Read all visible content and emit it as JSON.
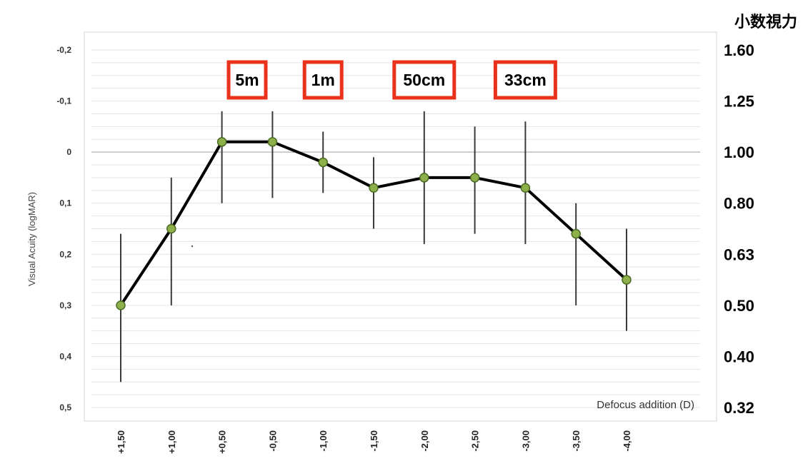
{
  "chart_data": {
    "type": "line",
    "title": "",
    "xlabel": "Defocus addition (D)",
    "ylabel": "Visual Acuity (logMAR)",
    "right_axis_title": "小数視力",
    "categories": [
      "+1,50",
      "+1,00",
      "+0,50",
      "-0,50",
      "-1,00",
      "-1,50",
      "-2,00",
      "-2,50",
      "-3,00",
      "-3,50",
      "-4,00"
    ],
    "values": [
      0.3,
      0.15,
      -0.02,
      -0.02,
      0.02,
      0.07,
      0.05,
      0.05,
      0.07,
      0.16,
      0.25
    ],
    "error_low": [
      0.16,
      0.05,
      -0.08,
      -0.08,
      -0.04,
      0.01,
      -0.08,
      -0.05,
      -0.06,
      0.1,
      0.15
    ],
    "error_high": [
      0.45,
      0.3,
      0.1,
      0.09,
      0.08,
      0.15,
      0.18,
      0.16,
      0.18,
      0.3,
      0.35
    ],
    "ylim": [
      -0.2,
      0.5
    ],
    "y_inverted": true,
    "y_ticks": [
      -0.2,
      -0.1,
      0,
      0.1,
      0.2,
      0.3,
      0.4,
      0.5
    ],
    "y_tick_labels": [
      "-0,2",
      "-0,1",
      "0",
      "0,1",
      "0,2",
      "0,3",
      "0,4",
      "0,5"
    ],
    "right_tick_labels": [
      "1.60",
      "1.25",
      "1.00",
      "0.80",
      "0.63",
      "0.50",
      "0.40",
      "0.32"
    ],
    "grid": true,
    "distance_markers": [
      {
        "label": "5m",
        "between": [
          2,
          3
        ]
      },
      {
        "label": "1m",
        "at": 4
      },
      {
        "label": "50cm",
        "at": 6
      },
      {
        "label": "33cm",
        "at": 8
      }
    ],
    "colors": {
      "line": "#000000",
      "marker_fill": "#8db04a",
      "marker_stroke": "#4a6b22",
      "error_bar": "#3a3a3a",
      "grid": "#e3e3e3",
      "zero_line": "#bdbdbd",
      "marker_box_border": "#e8321c"
    }
  }
}
